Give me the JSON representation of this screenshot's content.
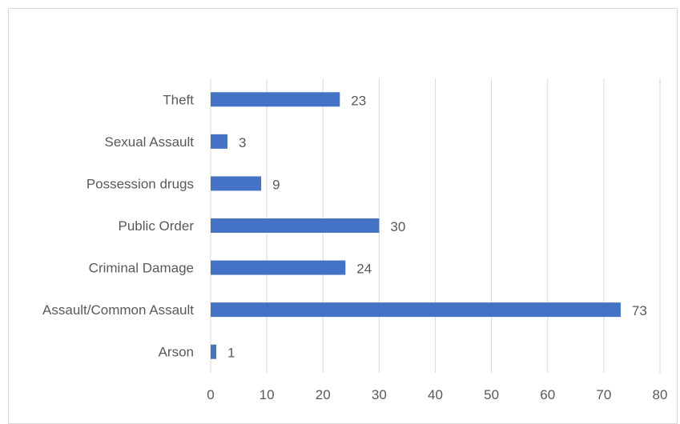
{
  "chart_data": {
    "type": "bar",
    "orientation": "horizontal",
    "title": "",
    "xlabel": "",
    "ylabel": "",
    "categories": [
      "Theft",
      "Sexual Assault",
      "Possession drugs",
      "Public Order",
      "Criminal Damage",
      "Assault/Common Assault",
      "Arson"
    ],
    "values": [
      23,
      3,
      9,
      30,
      24,
      73,
      1
    ],
    "xlim": [
      0,
      80
    ],
    "xticks": [
      "0",
      "10",
      "20",
      "30",
      "40",
      "50",
      "60",
      "70",
      "80"
    ],
    "grid": "vertical",
    "legend": "none",
    "bar_color": "#4472c4",
    "grid_color": "#d9d9d9"
  }
}
